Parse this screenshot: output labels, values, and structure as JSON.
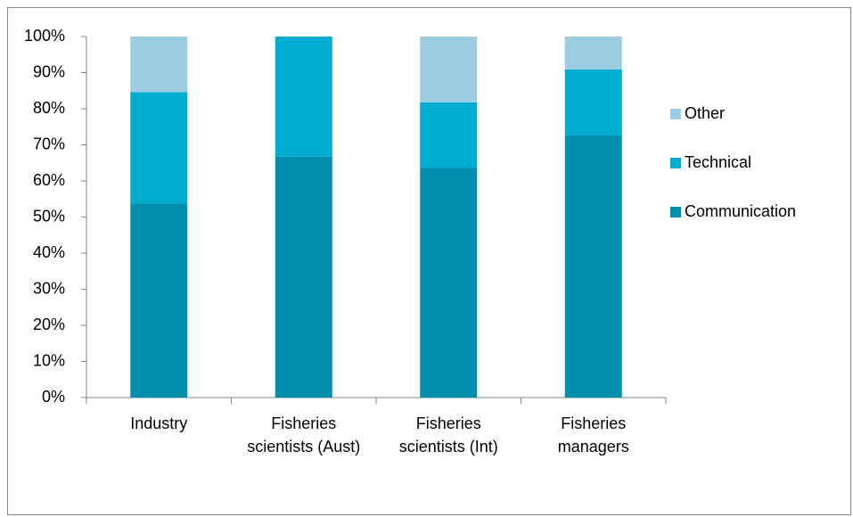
{
  "chart_data": {
    "type": "stacked_bar",
    "categories": [
      "Industry",
      "Fisheries scientists (Aust)",
      "Fisheries scientists (Int)",
      "Fisheries managers"
    ],
    "series": [
      {
        "name": "Communication",
        "color": "#008fae",
        "values": [
          53.8,
          66.7,
          63.6,
          72.7
        ]
      },
      {
        "name": "Technical",
        "color": "#00acd0",
        "values": [
          30.8,
          33.3,
          18.2,
          18.2
        ]
      },
      {
        "name": "Other",
        "color": "#9ccde2",
        "values": [
          15.4,
          0,
          18.2,
          9.1
        ]
      }
    ],
    "ylim": [
      0,
      100
    ],
    "yticks": [
      {
        "value": 0,
        "label": "0%"
      },
      {
        "value": 10,
        "label": "10%"
      },
      {
        "value": 20,
        "label": "20%"
      },
      {
        "value": 30,
        "label": "30%"
      },
      {
        "value": 40,
        "label": "40%"
      },
      {
        "value": 50,
        "label": "50%"
      },
      {
        "value": 60,
        "label": "60%"
      },
      {
        "value": 70,
        "label": "70%"
      },
      {
        "value": 80,
        "label": "80%"
      },
      {
        "value": 90,
        "label": "90%"
      },
      {
        "value": 100,
        "label": "100%"
      }
    ],
    "grid": false,
    "legend": "right"
  }
}
